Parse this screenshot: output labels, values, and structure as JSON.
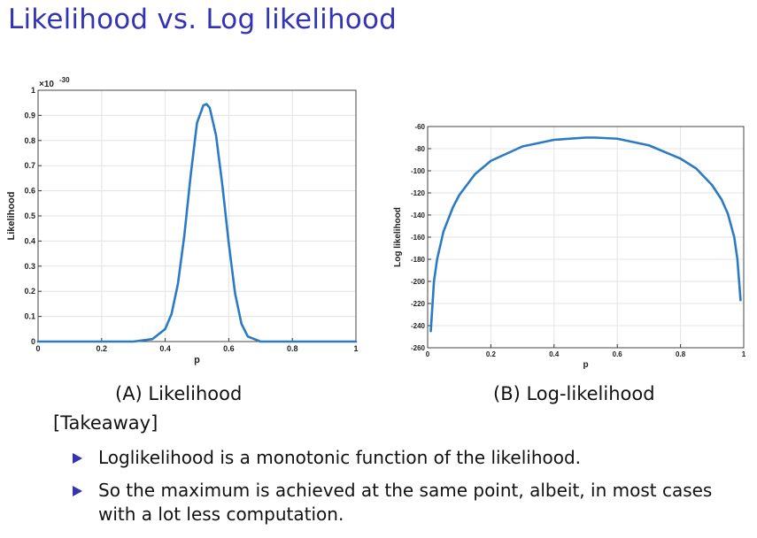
{
  "slide": {
    "title": "Likelihood vs. Log likelihood",
    "caption_a": "(A) Likelihood",
    "caption_b": "(B) Log-likelihood",
    "takeaway_label": "[Takeaway]",
    "bullets": [
      "Loglikelihood is a monotonic function of the likelihood.",
      "So the maximum is achieved at the same point, albeit, in most cases with a lot less computation."
    ],
    "accent_color": "#3333b3",
    "line_color": "#2b7bc4"
  },
  "chart_data": [
    {
      "type": "line",
      "xlabel": "p",
      "ylabel": "Likelihood",
      "exponent_label": "×10",
      "exponent_power": "-30",
      "xlim": [
        0,
        1
      ],
      "ylim": [
        0,
        1
      ],
      "grid": true,
      "x_ticks": [
        "0",
        "0.2",
        "0.4",
        "0.6",
        "0.8",
        "1"
      ],
      "y_ticks": [
        "0",
        "0.1",
        "0.2",
        "0.3",
        "0.4",
        "0.5",
        "0.6",
        "0.7",
        "0.8",
        "0.9",
        "1"
      ],
      "series": [
        {
          "x": [
            0,
            0.3,
            0.36,
            0.4,
            0.42,
            0.44,
            0.46,
            0.48,
            0.5,
            0.52,
            0.53,
            0.54,
            0.56,
            0.58,
            0.6,
            0.62,
            0.64,
            0.66,
            0.7,
            1
          ],
          "y": [
            0,
            0,
            0.01,
            0.05,
            0.11,
            0.23,
            0.42,
            0.66,
            0.87,
            0.94,
            0.945,
            0.93,
            0.82,
            0.62,
            0.39,
            0.19,
            0.07,
            0.02,
            0,
            0
          ]
        }
      ]
    },
    {
      "type": "line",
      "xlabel": "p",
      "ylabel": "Log likelihood",
      "xlim": [
        0,
        1
      ],
      "ylim": [
        -260,
        -60
      ],
      "grid": true,
      "x_ticks": [
        "0",
        "0.2",
        "0.4",
        "0.6",
        "0.8",
        "1"
      ],
      "y_ticks": [
        "-60",
        "-80",
        "-100",
        "-120",
        "-140",
        "-160",
        "-180",
        "-200",
        "-220",
        "-240",
        "-260"
      ],
      "series": [
        {
          "x": [
            0.01,
            0.02,
            0.03,
            0.05,
            0.08,
            0.1,
            0.15,
            0.2,
            0.3,
            0.4,
            0.5,
            0.53,
            0.6,
            0.7,
            0.8,
            0.85,
            0.9,
            0.93,
            0.95,
            0.97,
            0.98,
            0.99
          ],
          "y": [
            -245,
            -200,
            -180,
            -155,
            -133,
            -122,
            -103,
            -91,
            -78,
            -72,
            -70,
            -70,
            -71,
            -77,
            -89,
            -98,
            -113,
            -126,
            -139,
            -160,
            -180,
            -217
          ]
        }
      ]
    }
  ]
}
